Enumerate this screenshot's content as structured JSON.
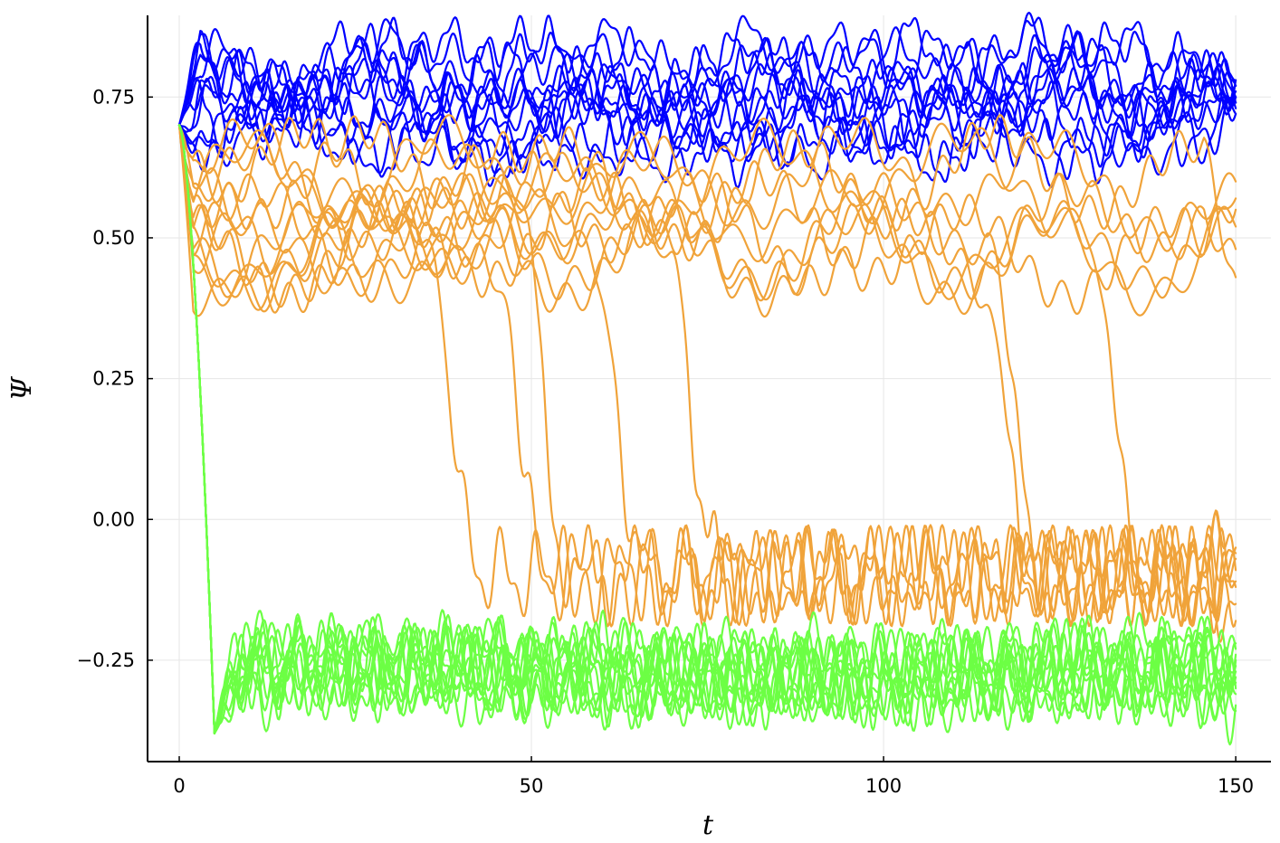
{
  "chart_data": {
    "type": "line",
    "title": "",
    "xlabel": "t",
    "ylabel": "Ψ",
    "xlim": [
      -4.5,
      155
    ],
    "ylim": [
      -0.43,
      0.895
    ],
    "x_ticks": [
      0,
      50,
      100,
      150
    ],
    "x_tick_labels": [
      "0",
      "50",
      "100",
      "150"
    ],
    "y_ticks": [
      -0.25,
      0,
      0.25,
      0.5,
      0.75
    ],
    "y_tick_labels": [
      "−0.25",
      "0.00",
      "0.25",
      "0.50",
      "0.75"
    ],
    "grid": true,
    "legend": "none",
    "x_range": [
      0,
      150
    ],
    "initial_value": 0.7,
    "groups": [
      {
        "color": "#0000ff",
        "count": 12,
        "final_levels": [
          0.75,
          0.72,
          0.78,
          0.74,
          0.77,
          0.73,
          0.76,
          0.74,
          0.78,
          0.72,
          0.75,
          0.77
        ],
        "oscillation_range": [
          0.63,
          0.85
        ]
      },
      {
        "color": "#f0a33a",
        "count": 14,
        "final_levels": [
          0.57,
          0.43,
          0.6,
          0.52,
          0.48,
          0.55,
          -0.05,
          -0.12,
          -0.06,
          -0.18,
          -0.09,
          -0.15,
          -0.07,
          -0.11
        ],
        "upper_band": [
          0.3,
          0.7
        ],
        "lower_band": [
          -0.2,
          0.0
        ]
      },
      {
        "color": "#6cff44",
        "count": 12,
        "final_levels": [
          -0.24,
          -0.27,
          -0.3,
          -0.33,
          -0.22,
          -0.29,
          -0.26,
          -0.31,
          -0.25,
          -0.28,
          -0.34,
          -0.23
        ],
        "transient_minimum": -0.4,
        "oscillation_range": [
          -0.36,
          -0.17
        ]
      }
    ]
  }
}
